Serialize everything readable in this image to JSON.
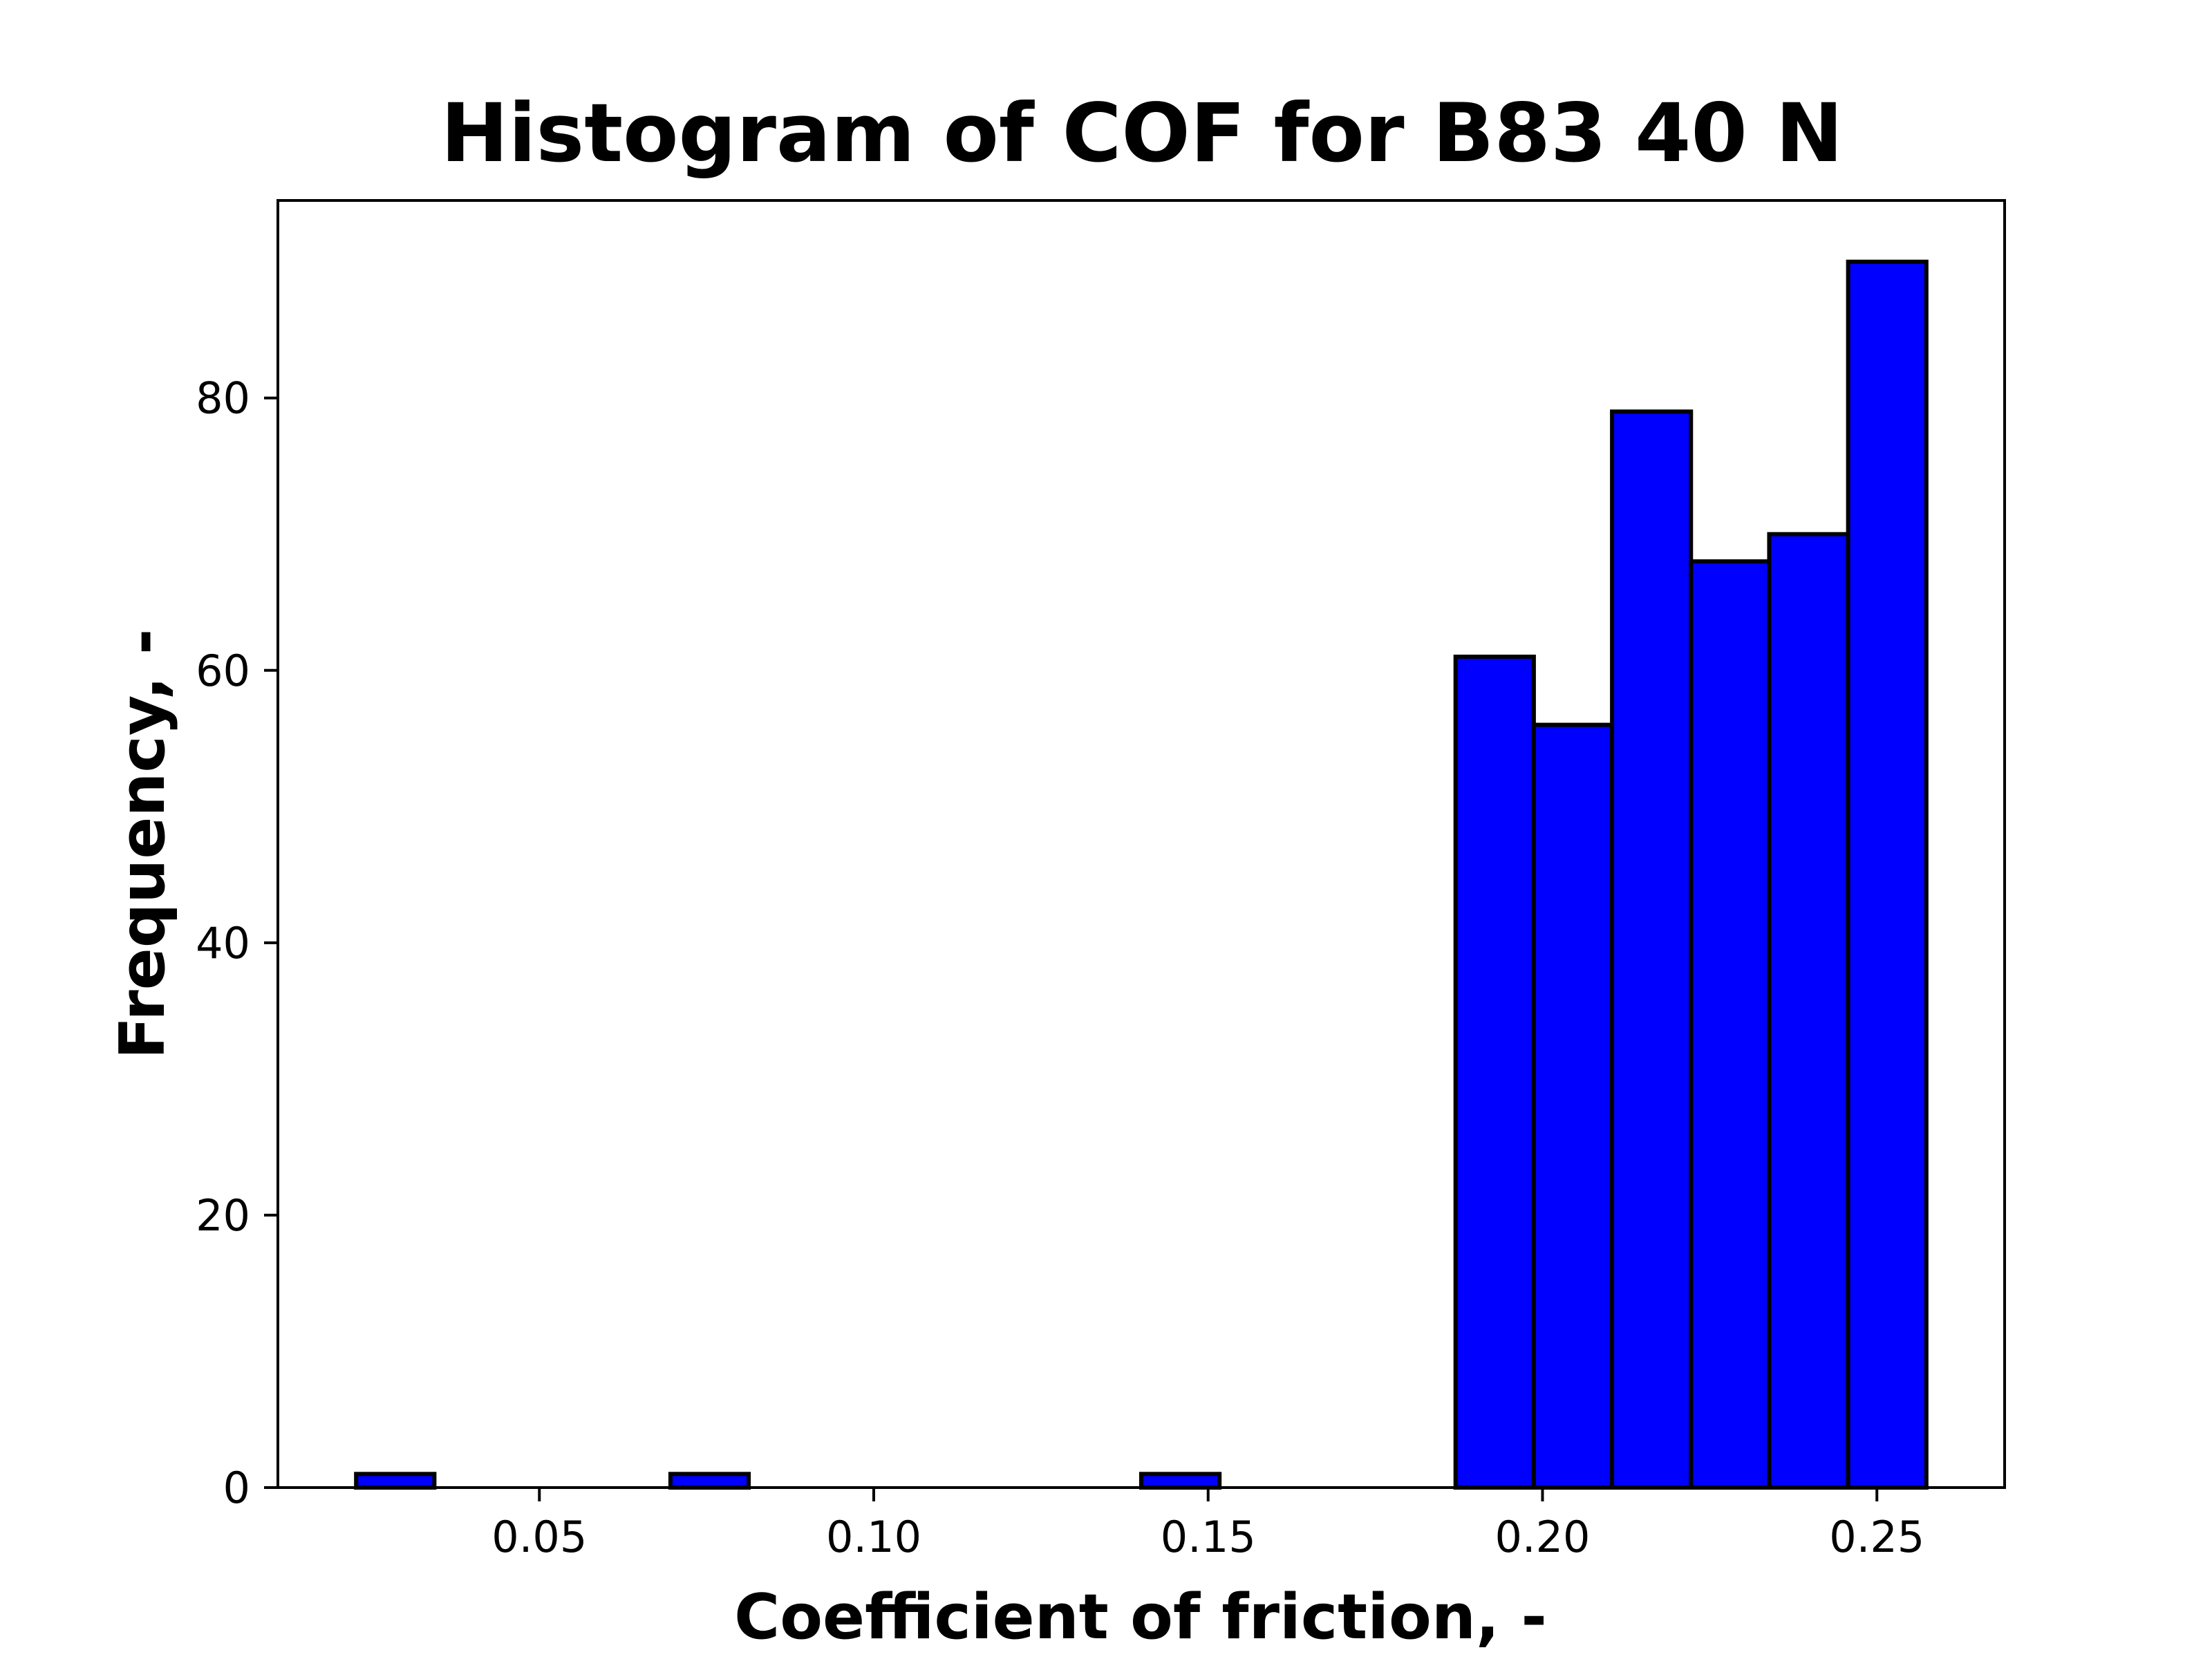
{
  "chart_data": {
    "type": "bar",
    "subtype": "histogram",
    "title": "Histogram of COF for B83 40 N",
    "xlabel": "Coefficient of friction, -",
    "ylabel": "Frequency, -",
    "xlim": [
      0.0109,
      0.2691
    ],
    "ylim": [
      0,
      94.5
    ],
    "xticks": [
      0.05,
      0.1,
      0.15,
      0.2,
      0.25
    ],
    "xtick_labels": [
      "0.05",
      "0.10",
      "0.15",
      "0.20",
      "0.25"
    ],
    "yticks": [
      0,
      20,
      40,
      60,
      80
    ],
    "ytick_labels": [
      "0",
      "20",
      "40",
      "60",
      "80"
    ],
    "grid": false,
    "bar_color": "#0000ff",
    "edge_color": "#000000",
    "bins": [
      {
        "x0": 0.0226,
        "x1": 0.0343,
        "count": 1
      },
      {
        "x0": 0.0343,
        "x1": 0.0461,
        "count": 0
      },
      {
        "x0": 0.0461,
        "x1": 0.0578,
        "count": 0
      },
      {
        "x0": 0.0578,
        "x1": 0.0696,
        "count": 0
      },
      {
        "x0": 0.0696,
        "x1": 0.0813,
        "count": 1
      },
      {
        "x0": 0.0813,
        "x1": 0.093,
        "count": 0
      },
      {
        "x0": 0.093,
        "x1": 0.1048,
        "count": 0
      },
      {
        "x0": 0.1048,
        "x1": 0.1165,
        "count": 0
      },
      {
        "x0": 0.1165,
        "x1": 0.1283,
        "count": 0
      },
      {
        "x0": 0.1283,
        "x1": 0.14,
        "count": 0
      },
      {
        "x0": 0.14,
        "x1": 0.1517,
        "count": 1
      },
      {
        "x0": 0.1517,
        "x1": 0.1635,
        "count": 0
      },
      {
        "x0": 0.1635,
        "x1": 0.1752,
        "count": 0
      },
      {
        "x0": 0.1752,
        "x1": 0.187,
        "count": 0
      },
      {
        "x0": 0.187,
        "x1": 0.1987,
        "count": 61
      },
      {
        "x0": 0.1987,
        "x1": 0.2104,
        "count": 56
      },
      {
        "x0": 0.2104,
        "x1": 0.2222,
        "count": 79
      },
      {
        "x0": 0.2222,
        "x1": 0.2339,
        "count": 68
      },
      {
        "x0": 0.2339,
        "x1": 0.2457,
        "count": 70
      },
      {
        "x0": 0.2457,
        "x1": 0.2574,
        "count": 90
      }
    ]
  }
}
